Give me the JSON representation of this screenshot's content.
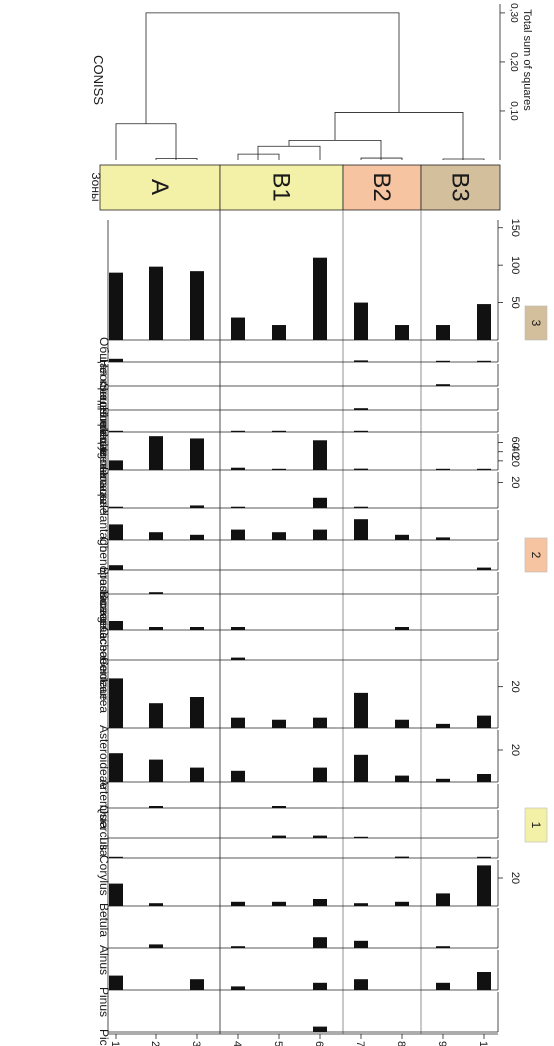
{
  "chart_data": {
    "type": "bar",
    "orientation": "rotated-90-clockwise",
    "samples": [
      "1",
      "2",
      "3",
      "4",
      "5",
      "6",
      "7",
      "8",
      "9",
      "10"
    ],
    "zones": [
      {
        "label": "A",
        "samples": [
          "1",
          "2",
          "3"
        ],
        "color": "#f3f0a7"
      },
      {
        "label": "B1",
        "samples": [
          "4",
          "5",
          "6"
        ],
        "color": "#f3f0a7"
      },
      {
        "label": "B2",
        "samples": [
          "7",
          "8"
        ],
        "color": "#f6c4a0"
      },
      {
        "label": "B3",
        "samples": [
          "9",
          "10"
        ],
        "color": "#d3bf9c"
      }
    ],
    "zones_title": "Зоны",
    "series": [
      {
        "name": "Picea",
        "values": [
          0,
          0,
          0,
          0,
          0,
          1.5,
          0,
          0,
          0,
          0
        ],
        "ticks": []
      },
      {
        "name": "Pinus",
        "values": [
          4,
          0,
          3,
          1,
          0,
          2,
          3,
          0,
          2,
          5
        ],
        "ticks": []
      },
      {
        "name": "Alnus",
        "values": [
          0,
          1,
          0,
          0.5,
          0,
          3,
          2,
          0,
          0.5,
          0
        ],
        "ticks": []
      },
      {
        "name": "Betula",
        "values": [
          16,
          2,
          0,
          3,
          3,
          5,
          2,
          3,
          9,
          29
        ],
        "ticks": [
          "20"
        ]
      },
      {
        "name": "Corylus",
        "values": [
          0.5,
          0,
          0,
          0,
          0,
          0,
          0,
          1,
          0,
          0.5
        ],
        "ticks": []
      },
      {
        "name": "Tilia",
        "values": [
          0,
          0,
          0,
          0,
          1,
          1,
          0.5,
          0,
          0,
          0
        ],
        "ticks": []
      },
      {
        "name": "Quercus",
        "values": [
          0,
          1,
          0,
          0,
          1,
          0,
          0,
          0,
          0,
          0
        ],
        "ticks": []
      },
      {
        "name": "Artemisia",
        "values": [
          18,
          14,
          9,
          7,
          0,
          9,
          17,
          4,
          2,
          5
        ],
        "ticks": [
          "20"
        ]
      },
      {
        "name": "Asteroideae",
        "values": [
          24,
          12,
          15,
          5,
          4,
          5,
          17,
          4,
          2,
          6
        ],
        "ticks": [
          "20"
        ]
      },
      {
        "name": "Centaurea",
        "values": [
          0,
          0,
          0,
          1,
          0,
          0,
          0,
          0,
          0,
          0
        ],
        "ticks": []
      },
      {
        "name": "Cichorioideae",
        "values": [
          3,
          1,
          1,
          1,
          0,
          0,
          0,
          1,
          0,
          0
        ],
        "ticks": []
      },
      {
        "name": "Boraginaceae",
        "values": [
          0,
          1,
          0,
          0,
          0,
          0,
          0,
          0,
          0,
          0
        ],
        "ticks": []
      },
      {
        "name": "Brassicaceae",
        "values": [
          2,
          0,
          0,
          0,
          0,
          0,
          0,
          0,
          0,
          1
        ],
        "ticks": []
      },
      {
        "name": "Chenopodiaceae",
        "values": [
          6,
          3,
          2,
          4,
          3,
          4,
          8,
          2,
          1,
          0
        ],
        "ticks": []
      },
      {
        "name": "Plantago",
        "values": [
          1,
          0,
          2,
          1,
          0,
          8,
          1,
          0,
          0,
          0
        ],
        "ticks": [
          "20"
        ]
      },
      {
        "name": "Poaceae",
        "values": [
          21,
          74,
          69,
          5,
          2,
          65,
          3,
          0,
          2,
          1
        ],
        "ticks": [
          "20",
          "40",
          "60"
        ]
      },
      {
        "name": "Polygonaceae",
        "values": [
          0.5,
          0,
          0,
          0.5,
          0.5,
          0,
          0.5,
          0,
          0,
          0
        ],
        "ticks": []
      },
      {
        "name": "Rumex t.",
        "values": [
          0,
          0,
          0,
          0,
          0,
          0,
          1,
          0,
          0,
          0
        ],
        "ticks": []
      },
      {
        "name": "Scrophulariaceae",
        "values": [
          0,
          0,
          0,
          0,
          0,
          0,
          0,
          0,
          1,
          0
        ],
        "ticks": []
      },
      {
        "name": "Неопределенные",
        "values": [
          2,
          0,
          0,
          0,
          0,
          0,
          1,
          0,
          0.5,
          0.5
        ],
        "ticks": []
      },
      {
        "name": "Общая концентрация пыльцы",
        "values": [
          90,
          98,
          92,
          30,
          20,
          110,
          50,
          20,
          20,
          48
        ],
        "ticks": [
          "50",
          "100",
          "150"
        ]
      }
    ],
    "coniss": {
      "title": "CONISS",
      "axis_label": "Total sum of squares",
      "ticks": [
        "0,10",
        "0,20",
        "0,30"
      ],
      "xlim": [
        0,
        0.32
      ]
    },
    "legend": [
      {
        "label": "1",
        "color": "#f3f0a7"
      },
      {
        "label": "2",
        "color": "#f6c4a0"
      },
      {
        "label": "3",
        "color": "#d3bf9c"
      }
    ]
  }
}
